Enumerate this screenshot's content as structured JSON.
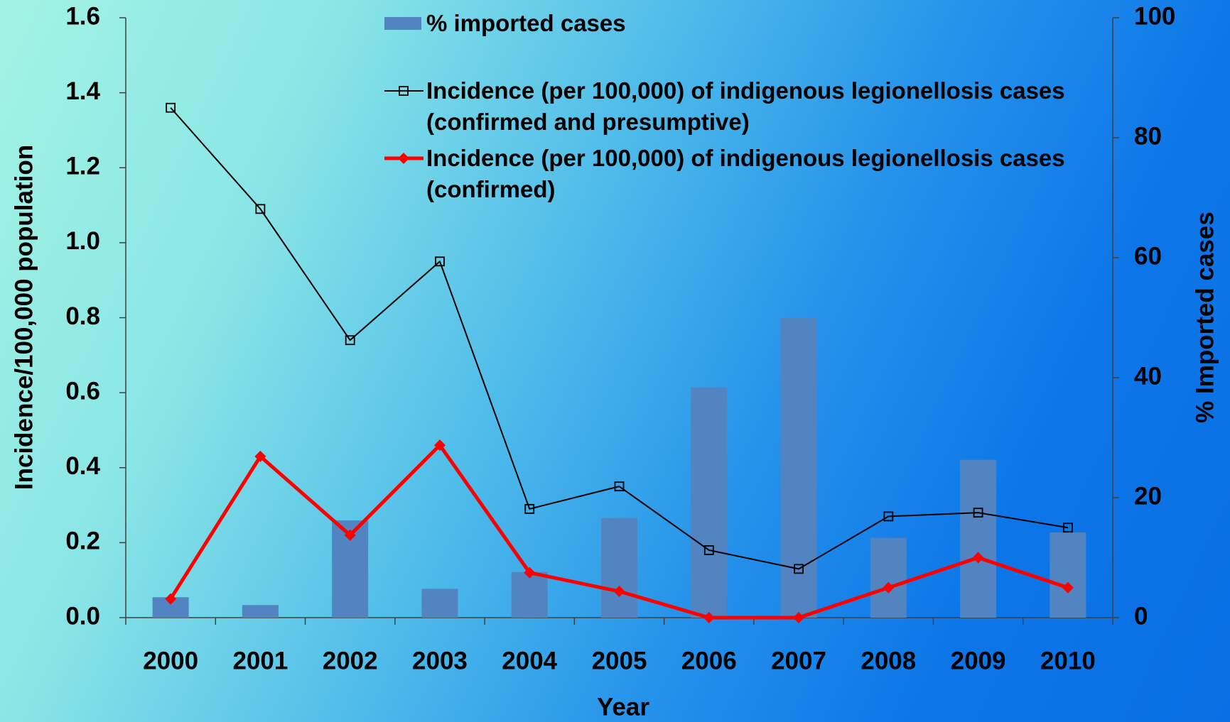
{
  "chart_data": {
    "type": "bar",
    "categories": [
      "2000",
      "2001",
      "2002",
      "2003",
      "2004",
      "2005",
      "2006",
      "2007",
      "2008",
      "2009",
      "2010"
    ],
    "series": [
      {
        "name": "% imported cases",
        "type": "bar",
        "axis": "y2",
        "color": "#5184c0",
        "values": [
          3.4,
          2.1,
          16.2,
          4.8,
          7.6,
          16.6,
          38.4,
          50,
          13.3,
          26.3,
          14.2
        ]
      },
      {
        "name": "Incidence (per 100,000) of indigenous legionellosis cases (confirmed and presumptive)",
        "type": "line",
        "marker": "square",
        "color": "#000000",
        "values": [
          1.36,
          1.09,
          0.74,
          0.95,
          0.29,
          0.35,
          0.18,
          0.13,
          0.27,
          0.28,
          0.24
        ]
      },
      {
        "name": "Incidence (per 100,000) of indigenous legionellosis cases (confirmed)",
        "type": "line",
        "marker": "diamond",
        "color": "#ff0000",
        "values": [
          0.05,
          0.43,
          0.22,
          0.46,
          0.12,
          0.07,
          0,
          0,
          0.08,
          0.16,
          0.08
        ]
      }
    ],
    "xlabel": "Year",
    "ylabel": "Incidence/100,000 population",
    "y2label": "% Imported cases",
    "ylim": [
      0,
      1.6
    ],
    "yticks": [
      {
        "value": 0,
        "label": "0.0"
      },
      0.2,
      0.4,
      0.6,
      0.8,
      {
        "value": 1,
        "label": "1.0"
      },
      1.2,
      1.4,
      1.6
    ],
    "y2lim": [
      0,
      100
    ],
    "y2ticks": [
      0,
      20,
      40,
      60,
      80,
      100
    ]
  }
}
